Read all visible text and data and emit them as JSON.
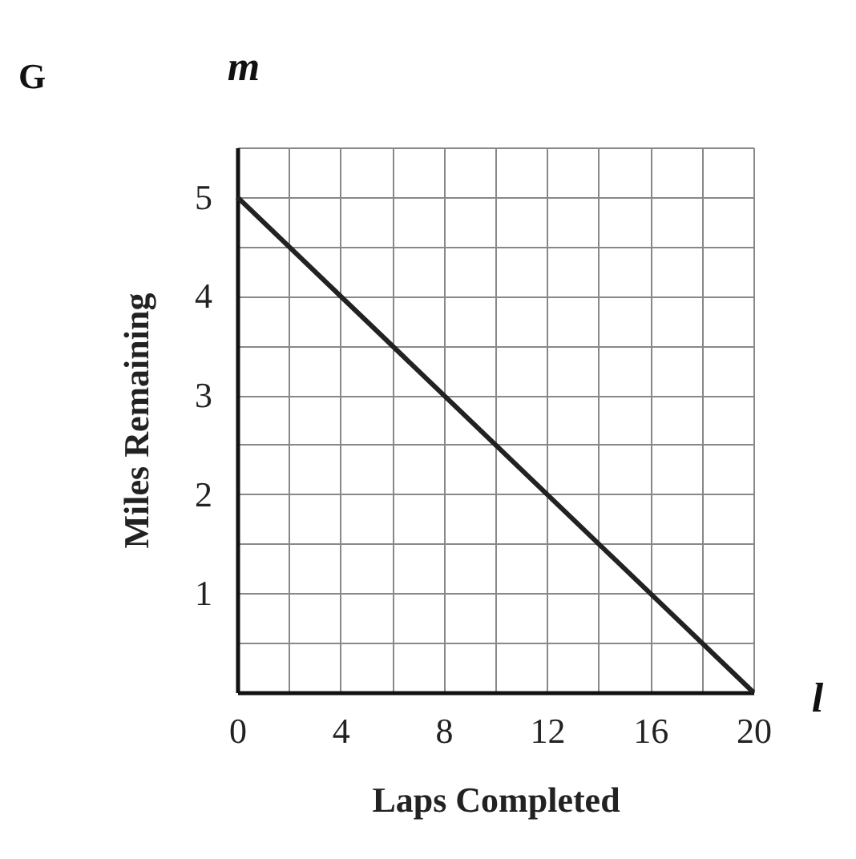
{
  "chart_data": {
    "type": "line",
    "xlabel": "Laps Completed",
    "ylabel": "Miles Remaining",
    "annotations": [
      "G",
      "m",
      "l"
    ],
    "series": [
      {
        "x": [
          0,
          20
        ],
        "values": [
          5,
          0
        ],
        "color": "#222222"
      }
    ],
    "xlim": [
      0,
      20
    ],
    "ylim": [
      0,
      5.5
    ],
    "xticks": [
      0,
      {
        "value": 2,
        "label": null
      },
      4,
      {
        "value": 6,
        "label": null
      },
      8,
      {
        "value": 10,
        "label": null
      },
      12,
      {
        "value": 14,
        "label": null
      },
      16,
      {
        "value": 18,
        "label": null
      },
      20
    ],
    "yticks": [
      {
        "value": 0,
        "label": null
      },
      {
        "value": 0.5,
        "label": null
      },
      1,
      {
        "value": 1.5,
        "label": null
      },
      2,
      {
        "value": 2.5,
        "label": null
      },
      3,
      {
        "value": 3.5,
        "label": null
      },
      4,
      {
        "value": 4.5,
        "label": null
      },
      5,
      {
        "value": 5.5,
        "label": null
      }
    ],
    "grid": true,
    "marker": "none",
    "line_style": "solid"
  }
}
